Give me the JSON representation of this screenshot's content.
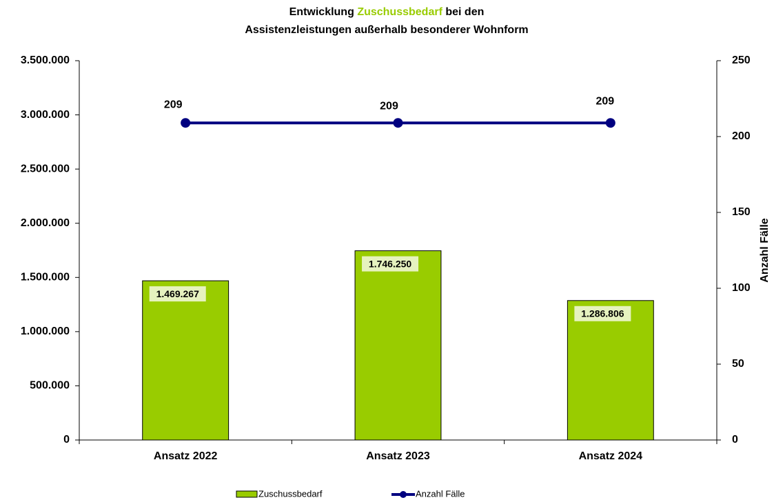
{
  "chart_data": {
    "type": "bar_line",
    "title": [
      "Entwicklung",
      "Zuschussbedarf",
      "bei den",
      "Assistenzleistungen außerhalb besonderer Wohnform"
    ],
    "title_highlight_color": "#99cc00",
    "categories": [
      "Ansatz 2022",
      "Ansatz 2023",
      "Ansatz 2024"
    ],
    "series": [
      {
        "name": "Zuschussbedarf",
        "type": "bar",
        "color": "#99cc00",
        "values": [
          1469267,
          1746250,
          1286806
        ],
        "value_labels": [
          "1.469.267",
          "1.746.250",
          "1.286.806"
        ]
      },
      {
        "name": "Anzahl Fälle",
        "type": "line",
        "axis": "y2",
        "color": "#000080",
        "values": [
          209,
          209,
          209
        ]
      }
    ],
    "ylim": [
      0,
      3500000
    ],
    "yticks": [
      0,
      {
        "value": 500000,
        "label": "500.000"
      },
      {
        "value": 1000000,
        "label": "1.000.000"
      },
      {
        "value": 1500000,
        "label": "1.500.000"
      },
      {
        "value": 2000000,
        "label": "2.000.000"
      },
      {
        "value": 2500000,
        "label": "2.500.000"
      },
      {
        "value": 3000000,
        "label": "3.000.000"
      },
      {
        "value": 3500000,
        "label": "3.500.000"
      }
    ],
    "y2label": "Anzahl Fälle",
    "y2lim": [
      0,
      250
    ],
    "y2ticks": [
      0,
      50,
      100,
      150,
      200,
      250
    ],
    "grid": false
  }
}
